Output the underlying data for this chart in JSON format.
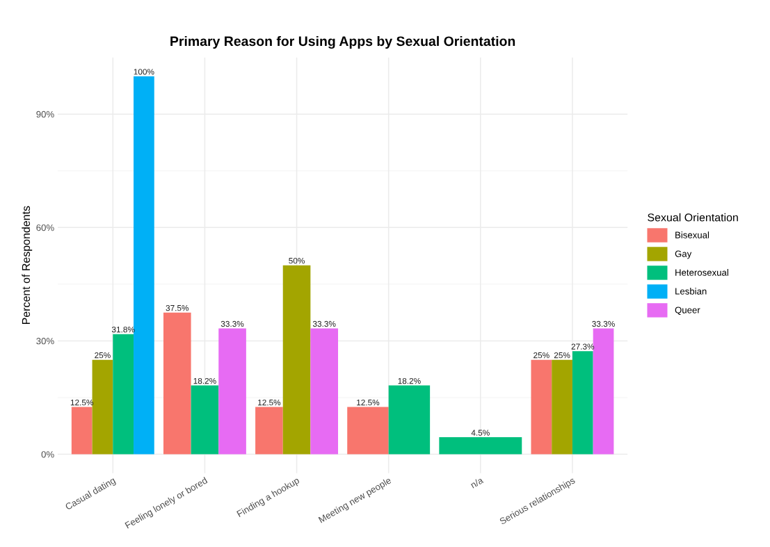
{
  "chart_data": {
    "type": "bar",
    "title": "Primary Reason for Using Apps by Sexual Orientation",
    "ylabel": "Percent of Respondents",
    "legend_title": "Sexual Orientation",
    "categories": [
      "Casual dating",
      "Feeling lonely or bored",
      "Finding a hookup",
      "Meeting new people",
      "n/a",
      "Serious relationships"
    ],
    "series": [
      {
        "name": "Bisexual",
        "color": "#f8766d",
        "values": [
          12.5,
          37.5,
          12.5,
          12.5,
          null,
          25
        ],
        "value_labels": [
          "12.5%",
          "37.5%",
          "12.5%",
          "12.5%",
          null,
          "25%"
        ]
      },
      {
        "name": "Gay",
        "color": "#a3a500",
        "values": [
          25,
          null,
          50,
          null,
          null,
          25
        ],
        "value_labels": [
          "25%",
          null,
          "50%",
          null,
          null,
          "25%"
        ]
      },
      {
        "name": "Heterosexual",
        "color": "#00bf7d",
        "values": [
          31.8,
          18.2,
          null,
          18.2,
          4.5,
          27.3
        ],
        "value_labels": [
          "31.8%",
          "18.2%",
          null,
          "18.2%",
          "4.5%",
          "27.3%"
        ]
      },
      {
        "name": "Lesbian",
        "color": "#00b0f6",
        "values": [
          100,
          null,
          null,
          null,
          null,
          null
        ],
        "value_labels": [
          "100%",
          null,
          null,
          null,
          null,
          null
        ]
      },
      {
        "name": "Queer",
        "color": "#e76bf3",
        "values": [
          null,
          33.3,
          33.3,
          null,
          null,
          33.3
        ],
        "value_labels": [
          null,
          "33.3%",
          "33.3%",
          null,
          null,
          "33.3%"
        ]
      }
    ],
    "ylim": [
      -5,
      105
    ],
    "yticks": [
      {
        "value": 0,
        "label": "0%"
      },
      {
        "value": 30,
        "label": "30%"
      },
      {
        "value": 60,
        "label": "60%"
      },
      {
        "value": 90,
        "label": "90%"
      }
    ],
    "grid": true,
    "legend": "right"
  }
}
